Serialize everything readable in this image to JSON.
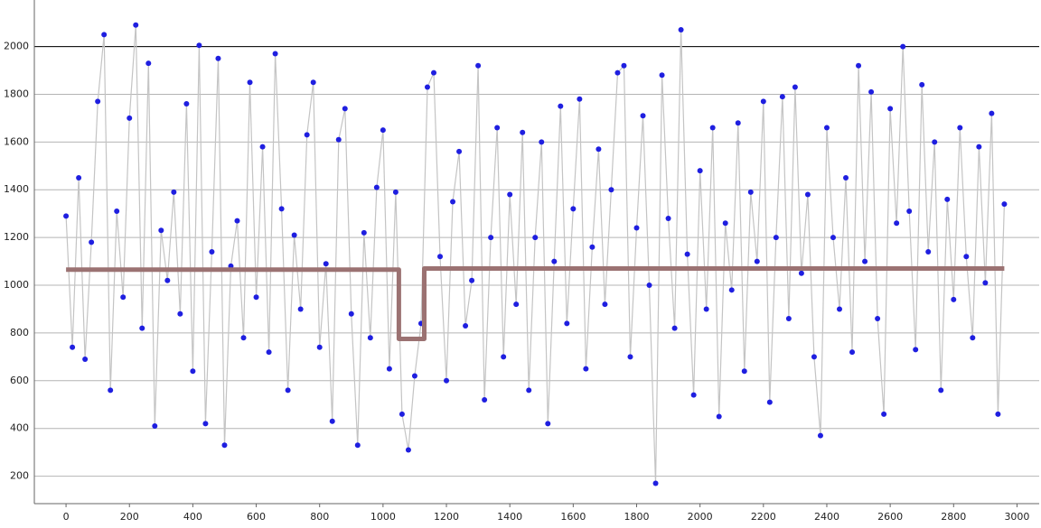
{
  "chart_data": {
    "type": "line",
    "x": [
      0,
      20,
      40,
      60,
      80,
      100,
      120,
      140,
      160,
      180,
      200,
      220,
      240,
      260,
      280,
      300,
      320,
      340,
      360,
      380,
      400,
      420,
      440,
      460,
      480,
      500,
      520,
      540,
      560,
      580,
      600,
      620,
      640,
      660,
      680,
      700,
      720,
      740,
      760,
      780,
      800,
      820,
      840,
      860,
      880,
      900,
      920,
      940,
      960,
      980,
      1000,
      1020,
      1040,
      1060,
      1080,
      1100,
      1120,
      1140,
      1160,
      1180,
      1200,
      1220,
      1240,
      1260,
      1280,
      1300,
      1320,
      1340,
      1360,
      1380,
      1400,
      1420,
      1440,
      1460,
      1480,
      1500,
      1520,
      1540,
      1560,
      1580,
      1600,
      1620,
      1640,
      1660,
      1680,
      1700,
      1720,
      1740,
      1760,
      1780,
      1800,
      1820,
      1840,
      1860,
      1880,
      1900,
      1920,
      1940,
      1960,
      1980,
      2000,
      2020,
      2040,
      2060,
      2080,
      2100,
      2120,
      2140,
      2160,
      2180,
      2200,
      2220,
      2240,
      2260,
      2280,
      2300,
      2320,
      2340,
      2360,
      2380,
      2400,
      2420,
      2440,
      2460,
      2480,
      2500,
      2520,
      2540,
      2560,
      2580,
      2600,
      2620,
      2640,
      2660,
      2680,
      2700,
      2720,
      2740,
      2760,
      2780,
      2800,
      2820,
      2840,
      2860,
      2880,
      2900,
      2920,
      2940,
      2960
    ],
    "series": [
      {
        "color": "#1f1fe0",
        "line_color": "#c4c4c4",
        "markers": true,
        "values": [
          1290,
          740,
          1450,
          690,
          1180,
          1770,
          2050,
          560,
          1310,
          950,
          1700,
          2090,
          820,
          1930,
          410,
          1230,
          1020,
          1390,
          880,
          1760,
          640,
          2005,
          420,
          1140,
          1950,
          330,
          1080,
          1270,
          780,
          1850,
          950,
          1580,
          720,
          1970,
          1320,
          560,
          1210,
          900,
          1630,
          1850,
          740,
          1090,
          430,
          1610,
          1740,
          880,
          330,
          1220,
          780,
          1410,
          1650,
          650,
          1390,
          460,
          310,
          620,
          840,
          1830,
          1890,
          1120,
          600,
          1350,
          1560,
          830,
          1020,
          1920,
          520,
          1200,
          1660,
          700,
          1380,
          920,
          1640,
          560,
          1200,
          1600,
          420,
          1100,
          1750,
          840,
          1320,
          1780,
          650,
          1160,
          1570,
          920,
          1400,
          1890,
          1920,
          700,
          1240,
          1710,
          1000,
          170,
          1880,
          1280,
          820,
          2070,
          1130,
          540,
          1480,
          900,
          1660,
          450,
          1260,
          980,
          1680,
          640,
          1390,
          1100,
          1770,
          510,
          1200,
          1790,
          860,
          1830,
          1050,
          1380,
          700,
          370,
          1660,
          1200,
          900,
          1450,
          720,
          1920,
          1100,
          1810,
          860,
          460,
          1740,
          1260,
          2000,
          1310,
          730,
          1840,
          1140,
          1600,
          560,
          1360,
          940,
          1660,
          1120,
          780,
          1580,
          1010,
          1720,
          460,
          1340
        ]
      },
      {
        "color": "#9b7272",
        "markers": false,
        "x": [
          0,
          1050,
          1050,
          1130,
          1130,
          2960
        ],
        "values": [
          1065,
          1065,
          775,
          775,
          1070,
          1070
        ]
      }
    ],
    "xlim": [
      -100,
      3070
    ],
    "ylim": [
      85,
      2195
    ],
    "xticks": [
      0,
      200,
      400,
      600,
      800,
      1000,
      1200,
      1400,
      1600,
      1800,
      2000,
      2200,
      2400,
      2600,
      2800,
      3000
    ],
    "yticks": [
      200,
      400,
      600,
      800,
      1000,
      1200,
      1400,
      1600,
      1800,
      2000
    ],
    "grid": true,
    "reference_line": {
      "value": 2000,
      "color": "#000000"
    }
  }
}
